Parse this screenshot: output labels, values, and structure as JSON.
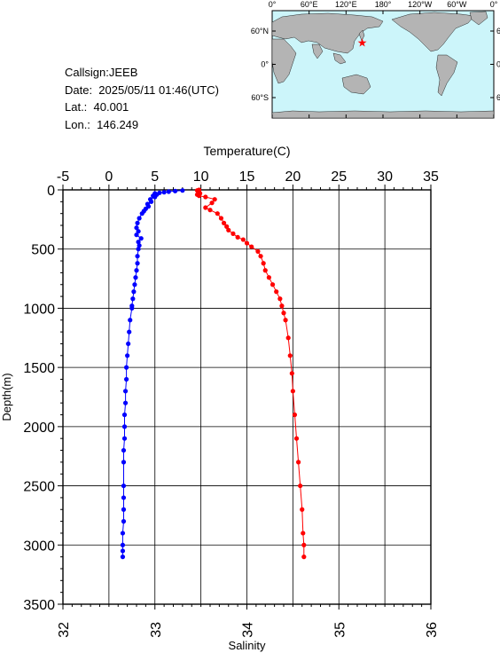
{
  "station": {
    "callsign": "Callsign:JEEB",
    "date": "Date:  2025/05/11 01:46(UTC)",
    "lat": "Lat.:  40.001",
    "lon": "Lon.:  146.249"
  },
  "map": {
    "lon_labels": [
      "0°",
      "60°E",
      "120°E",
      "180°",
      "120°W",
      "60°W",
      "0°"
    ],
    "lat_labels": [
      "60°N",
      "0°",
      "60°S"
    ],
    "station_lon": 146.249,
    "station_lat": 40.001,
    "ocean_color": "#ccf5fa",
    "land_color": "#b4b4b4",
    "marker_color": "#ff0000"
  },
  "chart_data": {
    "type": "line",
    "ylabel": "Depth(m)",
    "ylim": [
      3500,
      0
    ],
    "y_ticks": [
      "0",
      "500",
      "1000",
      "1500",
      "2000",
      "2500",
      "3000",
      "3500"
    ],
    "temperature_axis": {
      "label": "Temperature(C)",
      "range": [
        -5,
        35
      ],
      "ticks": [
        "-5",
        "0",
        "5",
        "10",
        "15",
        "20",
        "25",
        "30",
        "35"
      ],
      "color": "#0000ff"
    },
    "salinity_axis": {
      "label": "Salinity",
      "range": [
        32,
        36
      ],
      "ticks": [
        "32",
        "33",
        "34",
        "35",
        "36"
      ],
      "color": "#ff0000"
    },
    "grid": true,
    "series": [
      {
        "name": "Temperature(C)",
        "color": "#0000ff",
        "points": [
          [
            8.0,
            5
          ],
          [
            7.2,
            10
          ],
          [
            6.5,
            15
          ],
          [
            6.0,
            20
          ],
          [
            5.5,
            25
          ],
          [
            5.0,
            30
          ],
          [
            5.2,
            40
          ],
          [
            4.8,
            50
          ],
          [
            5.0,
            60
          ],
          [
            4.5,
            80
          ],
          [
            4.6,
            100
          ],
          [
            4.2,
            120
          ],
          [
            4.3,
            140
          ],
          [
            4.0,
            160
          ],
          [
            3.8,
            180
          ],
          [
            3.6,
            200
          ],
          [
            3.3,
            240
          ],
          [
            3.1,
            280
          ],
          [
            3.0,
            320
          ],
          [
            3.2,
            350
          ],
          [
            3.0,
            380
          ],
          [
            3.5,
            410
          ],
          [
            3.2,
            440
          ],
          [
            3.3,
            470
          ],
          [
            3.2,
            500
          ],
          [
            3.1,
            560
          ],
          [
            3.1,
            620
          ],
          [
            3.0,
            680
          ],
          [
            2.9,
            740
          ],
          [
            2.8,
            800
          ],
          [
            2.7,
            860
          ],
          [
            2.6,
            920
          ],
          [
            2.5,
            980
          ],
          [
            2.5,
            1000
          ],
          [
            2.3,
            1100
          ],
          [
            2.2,
            1200
          ],
          [
            2.1,
            1300
          ],
          [
            2.0,
            1400
          ],
          [
            1.9,
            1500
          ],
          [
            1.9,
            1600
          ],
          [
            1.8,
            1700
          ],
          [
            1.8,
            1800
          ],
          [
            1.7,
            1900
          ],
          [
            1.7,
            2000
          ],
          [
            1.7,
            2100
          ],
          [
            1.6,
            2200
          ],
          [
            1.6,
            2300
          ],
          [
            1.6,
            2500
          ],
          [
            1.6,
            2600
          ],
          [
            1.6,
            2700
          ],
          [
            1.6,
            2800
          ],
          [
            1.5,
            2900
          ],
          [
            1.5,
            3000
          ],
          [
            1.5,
            3050
          ],
          [
            1.5,
            3100
          ]
        ]
      },
      {
        "name": "Salinity",
        "color": "#ff0000",
        "points": [
          [
            33.48,
            0
          ],
          [
            33.46,
            5
          ],
          [
            33.47,
            10
          ],
          [
            33.48,
            20
          ],
          [
            33.49,
            30
          ],
          [
            33.46,
            40
          ],
          [
            33.48,
            50
          ],
          [
            33.55,
            60
          ],
          [
            33.65,
            80
          ],
          [
            33.62,
            110
          ],
          [
            33.55,
            150
          ],
          [
            33.6,
            170
          ],
          [
            33.68,
            200
          ],
          [
            33.72,
            240
          ],
          [
            33.75,
            280
          ],
          [
            33.78,
            310
          ],
          [
            33.8,
            340
          ],
          [
            33.85,
            370
          ],
          [
            33.9,
            400
          ],
          [
            33.96,
            420
          ],
          [
            34.0,
            450
          ],
          [
            34.05,
            480
          ],
          [
            34.12,
            520
          ],
          [
            34.15,
            560
          ],
          [
            34.18,
            620
          ],
          [
            34.2,
            680
          ],
          [
            34.24,
            740
          ],
          [
            34.28,
            800
          ],
          [
            34.32,
            860
          ],
          [
            34.36,
            920
          ],
          [
            34.38,
            980
          ],
          [
            34.4,
            1040
          ],
          [
            34.42,
            1100
          ],
          [
            34.45,
            1250
          ],
          [
            34.47,
            1400
          ],
          [
            34.49,
            1550
          ],
          [
            34.5,
            1700
          ],
          [
            34.52,
            1900
          ],
          [
            34.54,
            2100
          ],
          [
            34.56,
            2300
          ],
          [
            34.58,
            2500
          ],
          [
            34.6,
            2700
          ],
          [
            34.61,
            2900
          ],
          [
            34.62,
            3000
          ],
          [
            34.62,
            3100
          ]
        ]
      }
    ]
  }
}
